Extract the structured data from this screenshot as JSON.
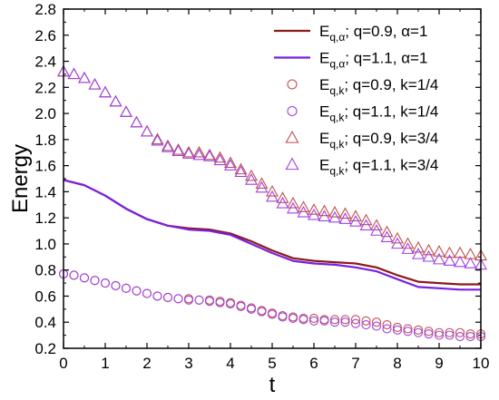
{
  "chart_data": {
    "type": "line",
    "title": "",
    "xlabel": "t",
    "ylabel": "Energy",
    "xlim": [
      0,
      10
    ],
    "ylim": [
      0.2,
      2.8
    ],
    "x_ticks": [
      0,
      1,
      2,
      3,
      4,
      5,
      6,
      7,
      8,
      9,
      10
    ],
    "x_tick_labels": [
      "0",
      "1",
      "2",
      "3",
      "4",
      "5",
      "6",
      "7",
      "8",
      "9",
      "10"
    ],
    "y_ticks": [
      0.2,
      0.4,
      0.6,
      0.8,
      1.0,
      1.2,
      1.4,
      1.6,
      1.8,
      2.0,
      2.2,
      2.4,
      2.6,
      2.8
    ],
    "y_tick_labels": [
      "0.2",
      "0.4",
      "0.6",
      "0.8",
      "1.0",
      "1.2",
      "1.4",
      "1.6",
      "1.8",
      "2.0",
      "2.2",
      "2.4",
      "2.6",
      "2.8"
    ],
    "grid": false,
    "legend_position": "top-right",
    "series": [
      {
        "name": "E_{q,α}; q=0.9, α=1",
        "legend_main": "E",
        "legend_sub": "q,α",
        "legend_rest": "; q=0.9, α=1",
        "style": "line",
        "color": "#8B1A1A",
        "x": [
          0,
          0.5,
          1,
          1.5,
          2,
          2.5,
          3,
          3.5,
          4,
          4.5,
          5,
          5.5,
          6,
          6.5,
          7,
          7.5,
          8,
          8.5,
          9,
          9.5,
          10
        ],
        "y": [
          1.49,
          1.45,
          1.37,
          1.27,
          1.19,
          1.14,
          1.12,
          1.11,
          1.08,
          1.02,
          0.95,
          0.89,
          0.87,
          0.86,
          0.85,
          0.82,
          0.76,
          0.71,
          0.7,
          0.69,
          0.69
        ]
      },
      {
        "name": "E_{q,α}; q=1.1, α=1",
        "legend_main": "E",
        "legend_sub": "q,α",
        "legend_rest": "; q=1.1, α=1",
        "style": "line",
        "color": "#7B1FE0",
        "x": [
          0,
          0.5,
          1,
          1.5,
          2,
          2.5,
          3,
          3.5,
          4,
          4.5,
          5,
          5.5,
          6,
          6.5,
          7,
          7.5,
          8,
          8.5,
          9,
          9.5,
          10
        ],
        "y": [
          1.49,
          1.45,
          1.37,
          1.27,
          1.19,
          1.14,
          1.11,
          1.1,
          1.07,
          1.0,
          0.93,
          0.87,
          0.85,
          0.84,
          0.82,
          0.79,
          0.73,
          0.67,
          0.66,
          0.65,
          0.65
        ]
      },
      {
        "name": "E_{q,k}; q=0.9, k=1/4",
        "legend_main": "E",
        "legend_sub": "q,k",
        "legend_rest": "; q=0.9, k=1/4",
        "style": "circle",
        "color": "#C0504D",
        "x": [
          0,
          0.25,
          0.5,
          0.75,
          1,
          1.25,
          1.5,
          1.75,
          2,
          2.25,
          2.5,
          2.75,
          3,
          3.25,
          3.5,
          3.75,
          4,
          4.25,
          4.5,
          4.75,
          5,
          5.25,
          5.5,
          5.75,
          6,
          6.25,
          6.5,
          6.75,
          7,
          7.25,
          7.5,
          7.75,
          8,
          8.25,
          8.5,
          8.75,
          9,
          9.25,
          9.5,
          9.75,
          10
        ],
        "y": [
          0.77,
          0.76,
          0.74,
          0.72,
          0.7,
          0.68,
          0.66,
          0.64,
          0.62,
          0.6,
          0.59,
          0.58,
          0.58,
          0.57,
          0.57,
          0.56,
          0.55,
          0.53,
          0.51,
          0.49,
          0.47,
          0.45,
          0.44,
          0.43,
          0.43,
          0.42,
          0.42,
          0.42,
          0.42,
          0.41,
          0.4,
          0.38,
          0.36,
          0.35,
          0.34,
          0.33,
          0.32,
          0.32,
          0.32,
          0.31,
          0.31
        ]
      },
      {
        "name": "E_{q,k}; q=1.1, k=1/4",
        "legend_main": "E",
        "legend_sub": "q,k",
        "legend_rest": "; q=1.1, k=1/4",
        "style": "circle",
        "color": "#A040E0",
        "x": [
          0,
          0.25,
          0.5,
          0.75,
          1,
          1.25,
          1.5,
          1.75,
          2,
          2.25,
          2.5,
          2.75,
          3,
          3.25,
          3.5,
          3.75,
          4,
          4.25,
          4.5,
          4.75,
          5,
          5.25,
          5.5,
          5.75,
          6,
          6.25,
          6.5,
          6.75,
          7,
          7.25,
          7.5,
          7.75,
          8,
          8.25,
          8.5,
          8.75,
          9,
          9.25,
          9.5,
          9.75,
          10
        ],
        "y": [
          0.77,
          0.76,
          0.74,
          0.72,
          0.7,
          0.68,
          0.66,
          0.64,
          0.62,
          0.6,
          0.59,
          0.58,
          0.57,
          0.57,
          0.56,
          0.55,
          0.54,
          0.52,
          0.5,
          0.48,
          0.46,
          0.44,
          0.43,
          0.42,
          0.41,
          0.41,
          0.4,
          0.4,
          0.39,
          0.38,
          0.37,
          0.35,
          0.34,
          0.33,
          0.32,
          0.31,
          0.3,
          0.3,
          0.29,
          0.29,
          0.29
        ]
      },
      {
        "name": "E_{q,k}; q=0.9, k=3/4",
        "legend_main": "E",
        "legend_sub": "q,k",
        "legend_rest": "; q=0.9, k=3/4",
        "style": "triangle",
        "color": "#C0504D",
        "x": [
          0,
          0.25,
          0.5,
          0.75,
          1,
          1.25,
          1.5,
          1.75,
          2,
          2.25,
          2.5,
          2.75,
          3,
          3.25,
          3.5,
          3.75,
          4,
          4.25,
          4.5,
          4.75,
          5,
          5.25,
          5.5,
          5.75,
          6,
          6.25,
          6.5,
          6.75,
          7,
          7.25,
          7.5,
          7.75,
          8,
          8.25,
          8.5,
          8.75,
          9,
          9.25,
          9.5,
          9.75,
          10
        ],
        "y": [
          2.32,
          2.3,
          2.27,
          2.22,
          2.16,
          2.09,
          2.01,
          1.93,
          1.86,
          1.8,
          1.75,
          1.72,
          1.7,
          1.7,
          1.68,
          1.66,
          1.62,
          1.57,
          1.52,
          1.46,
          1.4,
          1.35,
          1.31,
          1.28,
          1.26,
          1.25,
          1.24,
          1.23,
          1.21,
          1.18,
          1.14,
          1.09,
          1.04,
          1.0,
          0.97,
          0.95,
          0.94,
          0.93,
          0.93,
          0.92,
          0.91
        ]
      },
      {
        "name": "E_{q,k}; q=1.1, k=3/4",
        "legend_main": "E",
        "legend_sub": "q,k",
        "legend_rest": "; q=1.1, k=3/4",
        "style": "triangle",
        "color": "#A040E0",
        "x": [
          0,
          0.25,
          0.5,
          0.75,
          1,
          1.25,
          1.5,
          1.75,
          2,
          2.25,
          2.5,
          2.75,
          3,
          3.25,
          3.5,
          3.75,
          4,
          4.25,
          4.5,
          4.75,
          5,
          5.25,
          5.5,
          5.75,
          6,
          6.25,
          6.5,
          6.75,
          7,
          7.25,
          7.5,
          7.75,
          8,
          8.25,
          8.5,
          8.75,
          9,
          9.25,
          9.5,
          9.75,
          10
        ],
        "y": [
          2.32,
          2.3,
          2.27,
          2.22,
          2.16,
          2.09,
          2.01,
          1.93,
          1.86,
          1.79,
          1.74,
          1.71,
          1.69,
          1.68,
          1.67,
          1.64,
          1.6,
          1.55,
          1.49,
          1.43,
          1.36,
          1.31,
          1.27,
          1.24,
          1.22,
          1.21,
          1.2,
          1.19,
          1.17,
          1.14,
          1.1,
          1.05,
          1.0,
          0.96,
          0.92,
          0.9,
          0.88,
          0.87,
          0.86,
          0.85,
          0.84
        ]
      }
    ]
  }
}
